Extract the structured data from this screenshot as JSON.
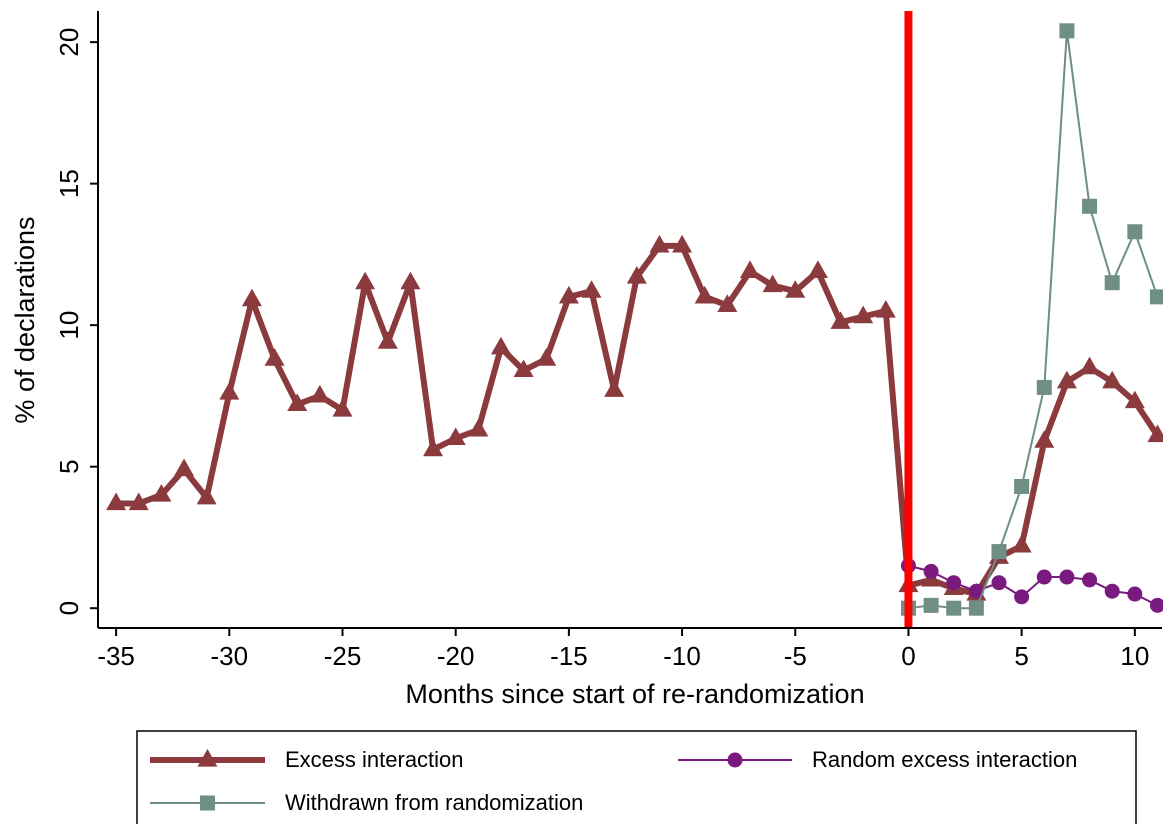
{
  "chart_data": {
    "type": "line",
    "xlabel": "Months since start of re-randomization",
    "ylabel": "% of declarations",
    "xlim": [
      -35.8,
      11.2
    ],
    "ylim": [
      -0.7,
      21.1
    ],
    "xticks": [
      -35,
      -30,
      -25,
      -20,
      -15,
      -10,
      -5,
      0,
      5,
      10
    ],
    "xtick_labels": [
      "-35",
      "-30",
      "-25",
      "-20",
      "-15",
      "-10",
      "-5",
      "0",
      "5",
      "10"
    ],
    "yticks": [
      0,
      5,
      10,
      15,
      20
    ],
    "ytick_labels": [
      "0",
      "5",
      "10",
      "15",
      "20"
    ],
    "grid": false,
    "legend_position": "bottom",
    "colors": {
      "excess": "#8b3a3e",
      "random": "#7a1a7e",
      "withdrawn": "#6e8e86",
      "vline": "#ff0000"
    },
    "vline_x": 0,
    "series": [
      {
        "name": "Excess interaction",
        "key": "excess",
        "marker": "triangle",
        "x": [
          -35,
          -34,
          -33,
          -32,
          -31,
          -30,
          -29,
          -28,
          -27,
          -26,
          -25,
          -24,
          -23,
          -22,
          -21,
          -20,
          -19,
          -18,
          -17,
          -16,
          -15,
          -14,
          -13,
          -12,
          -11,
          -10,
          -9,
          -8,
          -7,
          -6,
          -5,
          -4,
          -3,
          -2,
          -1,
          0,
          1,
          2,
          3,
          4,
          5,
          6,
          7,
          8,
          9,
          10,
          11
        ],
        "values": [
          3.7,
          3.7,
          4.0,
          4.9,
          3.9,
          7.6,
          10.9,
          8.8,
          7.2,
          7.5,
          7.0,
          11.5,
          9.4,
          11.5,
          5.6,
          6.0,
          6.3,
          9.2,
          8.4,
          8.8,
          11.0,
          11.2,
          7.7,
          11.7,
          12.8,
          12.8,
          11.0,
          10.7,
          11.9,
          11.4,
          11.2,
          11.9,
          10.1,
          10.3,
          10.5,
          0.8,
          1.0,
          0.7,
          0.5,
          1.8,
          2.2,
          5.9,
          8.0,
          8.5,
          8.0,
          7.3,
          6.1
        ]
      },
      {
        "name": "Random excess interaction",
        "key": "random",
        "marker": "circle",
        "x": [
          0,
          1,
          2,
          3,
          4,
          5,
          6,
          7,
          8,
          9,
          10,
          11
        ],
        "values": [
          1.5,
          1.3,
          0.9,
          0.6,
          0.9,
          0.4,
          1.1,
          1.1,
          1.0,
          0.6,
          0.5,
          0.1
        ]
      },
      {
        "name": "Withdrawn from randomization",
        "key": "withdrawn",
        "marker": "square",
        "x": [
          0,
          1,
          2,
          3,
          4,
          5,
          6,
          7,
          8,
          9,
          10,
          11
        ],
        "values": [
          0.0,
          0.1,
          0.0,
          0.0,
          2.0,
          4.3,
          7.8,
          20.4,
          14.2,
          11.5,
          13.3,
          11.0
        ]
      }
    ]
  }
}
